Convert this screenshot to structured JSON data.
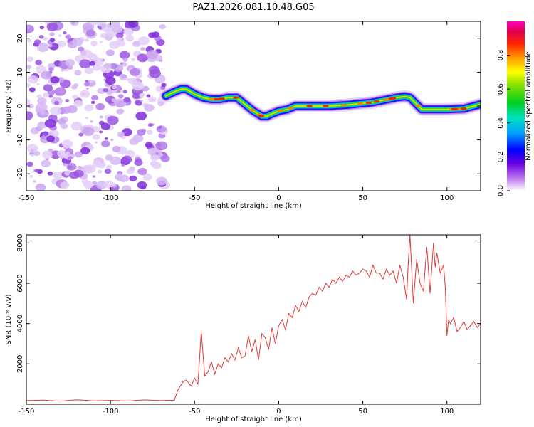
{
  "figure_title": "PAZ1.2026.081.10.48.G05",
  "chart_data": [
    {
      "type": "heatmap",
      "title": "PAZ1.2026.081.10.48.G05",
      "xlabel": "Height of straight line (km)",
      "ylabel": "Frequency (Hz)",
      "xlim": [
        -150,
        120
      ],
      "ylim": [
        -25,
        25
      ],
      "x_ticks": [
        -150,
        -100,
        -50,
        0,
        50,
        100
      ],
      "y_ticks": [
        -20,
        -10,
        0,
        10,
        20
      ],
      "x_tick_labels": [
        "-150",
        "-100",
        "-50",
        "0",
        "50",
        "100"
      ],
      "y_tick_labels": [
        "-20",
        "-10",
        "0",
        "10",
        "20"
      ],
      "noise_region_x": [
        -150,
        -67
      ],
      "colorbar": {
        "label": "Normalized spectral amplitude",
        "range": [
          0,
          1
        ],
        "ticks": [
          0.0,
          0.2,
          0.4,
          0.6,
          0.8
        ],
        "tick_labels": [
          "0.0",
          "0.2",
          "0.4",
          "0.6",
          "0.8"
        ]
      },
      "ridge": {
        "x": [
          -67,
          -63,
          -58,
          -55,
          -50,
          -45,
          -40,
          -35,
          -30,
          -25,
          -20,
          -15,
          -10,
          -7,
          -5,
          0,
          5,
          10,
          20,
          30,
          40,
          50,
          55,
          60,
          65,
          70,
          75,
          78,
          82,
          85,
          90,
          95,
          100,
          110,
          120
        ],
        "y": [
          3,
          4,
          5,
          5,
          3.5,
          2.5,
          2,
          2,
          2.5,
          2.5,
          0.5,
          -1.5,
          -3,
          -3,
          -2.5,
          -1.5,
          -1,
          0,
          0,
          0,
          0.3,
          0.8,
          1,
          1.5,
          2,
          2.5,
          2.8,
          2.5,
          0.5,
          -1,
          -1,
          -1,
          -1,
          -0.8,
          0.5
        ]
      }
    },
    {
      "type": "line",
      "xlabel": "Height of straight line (km)",
      "ylabel": "SNR (10 * v/v)",
      "xlim": [
        -150,
        120
      ],
      "ylim": [
        0,
        8400
      ],
      "x_ticks": [
        -150,
        -100,
        -50,
        0,
        50,
        100
      ],
      "y_ticks": [
        2000,
        4000,
        6000,
        8000
      ],
      "x_tick_labels": [
        "-150",
        "-100",
        "-50",
        "0",
        "50",
        "100"
      ],
      "y_tick_labels": [
        "2000",
        "4000",
        "6000",
        "8000"
      ],
      "series": [
        {
          "name": "SNR",
          "color": "#e03a3a",
          "x": [
            -150,
            -140,
            -130,
            -120,
            -110,
            -100,
            -90,
            -80,
            -70,
            -62,
            -60,
            -57,
            -55,
            -52,
            -50,
            -48,
            -46,
            -44,
            -42,
            -40,
            -38,
            -36,
            -34,
            -32,
            -30,
            -28,
            -26,
            -24,
            -22,
            -20,
            -18,
            -16,
            -14,
            -12,
            -10,
            -8,
            -6,
            -4,
            -2,
            0,
            2,
            4,
            6,
            8,
            10,
            12,
            14,
            16,
            18,
            20,
            22,
            24,
            26,
            28,
            30,
            32,
            34,
            36,
            38,
            40,
            42,
            44,
            46,
            48,
            50,
            52,
            54,
            56,
            58,
            60,
            62,
            64,
            66,
            68,
            70,
            72,
            74,
            76,
            77,
            78,
            80,
            82,
            84,
            86,
            88,
            90,
            92,
            93,
            94,
            96,
            98,
            99,
            100,
            101,
            102,
            104,
            106,
            108,
            110,
            112,
            114,
            116,
            118,
            120
          ],
          "y": [
            180,
            200,
            150,
            220,
            170,
            190,
            160,
            210,
            180,
            200,
            700,
            1100,
            1200,
            900,
            1300,
            1000,
            3600,
            1400,
            1600,
            2100,
            1500,
            2000,
            1800,
            2300,
            2100,
            2500,
            2200,
            2800,
            2300,
            2400,
            3400,
            2600,
            3200,
            2200,
            3500,
            3300,
            2700,
            3800,
            3000,
            3900,
            4200,
            3700,
            4500,
            4300,
            4900,
            4600,
            5100,
            4800,
            5300,
            5500,
            5400,
            5800,
            5600,
            6000,
            5800,
            6200,
            6000,
            6300,
            6100,
            6400,
            6300,
            6600,
            6400,
            6500,
            6700,
            6600,
            6300,
            6900,
            6500,
            6500,
            6200,
            6700,
            6400,
            6600,
            6000,
            6900,
            6300,
            5200,
            7000,
            8400,
            5000,
            7200,
            6000,
            5600,
            7800,
            5500,
            8000,
            6800,
            7500,
            6500,
            6900,
            5800,
            3400,
            4200,
            4000,
            4300,
            3600,
            3800,
            4100,
            3700,
            3900,
            4100,
            3800,
            4000
          ]
        }
      ]
    }
  ]
}
